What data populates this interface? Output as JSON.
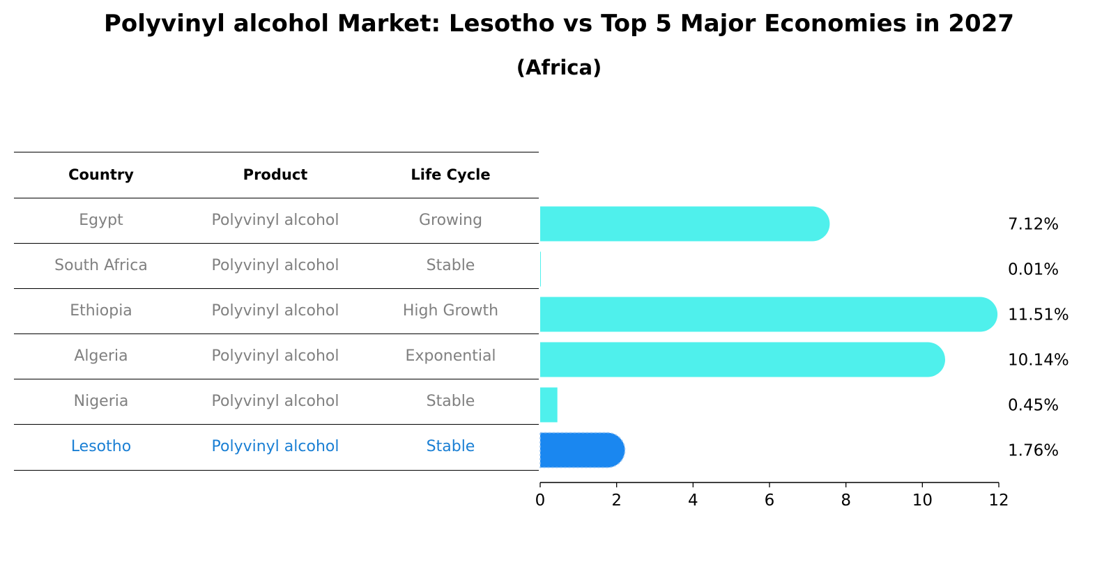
{
  "title": "Polyvinyl alcohol Market: Lesotho vs Top 5 Major Economies in 2027",
  "subtitle": "(Africa)",
  "table": {
    "headers": [
      "Country",
      "Product",
      "Life Cycle"
    ],
    "rows": [
      {
        "country": "Egypt",
        "product": "Polyvinyl alcohol",
        "life_cycle": "Growing"
      },
      {
        "country": "South Africa",
        "product": "Polyvinyl alcohol",
        "life_cycle": "Stable"
      },
      {
        "country": "Ethiopia",
        "product": "Polyvinyl alcohol",
        "life_cycle": "High Growth"
      },
      {
        "country": "Algeria",
        "product": "Polyvinyl alcohol",
        "life_cycle": "Exponential"
      },
      {
        "country": "Nigeria",
        "product": "Polyvinyl alcohol",
        "life_cycle": "Stable"
      },
      {
        "country": "Lesotho",
        "product": "Polyvinyl alcohol",
        "life_cycle": "Stable",
        "highlight": true
      }
    ]
  },
  "chart_data": {
    "type": "bar",
    "orientation": "horizontal",
    "categories": [
      "Egypt",
      "South Africa",
      "Ethiopia",
      "Algeria",
      "Nigeria",
      "Lesotho"
    ],
    "values": [
      7.12,
      0.01,
      11.51,
      10.14,
      0.45,
      1.76
    ],
    "value_labels": [
      "7.12%",
      "0.01%",
      "11.51%",
      "10.14%",
      "0.45%",
      "1.76%"
    ],
    "xlim": [
      0,
      12
    ],
    "xticks": [
      0,
      2,
      4,
      6,
      8,
      10,
      12
    ],
    "highlight_category": "Lesotho",
    "colors": {
      "bar": "#4ff0ec",
      "highlight": "#1a87f0",
      "highlight_edge": "#8fbff0"
    },
    "grid": false
  }
}
